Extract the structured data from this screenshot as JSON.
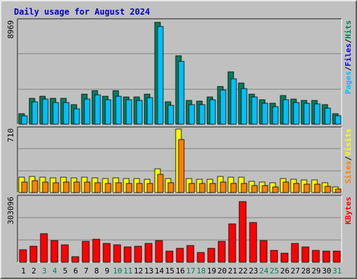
{
  "title": "Daily usage for August 2024",
  "colors": {
    "hits": "#00805c",
    "files": "#00c0ff",
    "sites": "#ff8000",
    "visits": "#ffff00",
    "kbytes": "#ff0000",
    "weekend_label": "#00805c",
    "weekday_label": "#000000",
    "title": "#0000cc"
  },
  "chart_data": [
    {
      "type": "bar",
      "panel": "top",
      "max_label": "8969",
      "ylim": [
        0,
        8969
      ],
      "grid": true,
      "legend": {
        "parts": [
          "Pages",
          "Files",
          "Hits"
        ],
        "colors": [
          "#00c0ff",
          "#0000ff",
          "#00805c"
        ],
        "placement": "right"
      },
      "categories": [
        "1",
        "2",
        "3",
        "4",
        "5",
        "6",
        "7",
        "8",
        "9",
        "10",
        "11",
        "12",
        "13",
        "14",
        "15",
        "16",
        "17",
        "18",
        "19",
        "20",
        "21",
        "22",
        "23",
        "24",
        "25",
        "26",
        "27",
        "28",
        "29",
        "30",
        "31"
      ],
      "series": [
        {
          "name": "Hits",
          "values": [
            900,
            2250,
            2450,
            2250,
            2250,
            1700,
            2600,
            2950,
            2450,
            2950,
            2400,
            2400,
            2650,
            8900,
            1950,
            5950,
            2100,
            2000,
            2400,
            3300,
            4550,
            3600,
            2650,
            2150,
            1800,
            2500,
            2200,
            2100,
            2100,
            1700,
            900
          ]
        },
        {
          "name": "Files",
          "values": [
            900,
            2150,
            2350,
            2050,
            2050,
            1550,
            2400,
            2750,
            2300,
            2650,
            2300,
            2250,
            2500,
            8700,
            1850,
            5700,
            1900,
            1900,
            2300,
            3150,
            4150,
            3300,
            2550,
            2000,
            1700,
            2300,
            2100,
            2000,
            1950,
            1600,
            900
          ]
        }
      ]
    },
    {
      "type": "bar",
      "panel": "middle",
      "max_label": "710",
      "ylim": [
        0,
        710
      ],
      "grid": true,
      "legend": {
        "parts": [
          "Sites",
          "Visits"
        ],
        "colors": [
          "#ff8000",
          "#ffff00"
        ],
        "placement": "right"
      },
      "categories": [
        "1",
        "2",
        "3",
        "4",
        "5",
        "6",
        "7",
        "8",
        "9",
        "10",
        "11",
        "12",
        "13",
        "14",
        "15",
        "16",
        "17",
        "18",
        "19",
        "20",
        "21",
        "22",
        "23",
        "24",
        "25",
        "26",
        "27",
        "28",
        "29",
        "30",
        "31"
      ],
      "series": [
        {
          "name": "Visits",
          "values": [
            170,
            180,
            170,
            165,
            170,
            165,
            170,
            165,
            160,
            165,
            160,
            155,
            150,
            270,
            155,
            720,
            155,
            150,
            150,
            180,
            175,
            170,
            125,
            120,
            110,
            160,
            150,
            140,
            140,
            110,
            60
          ]
        },
        {
          "name": "Sites",
          "values": [
            140,
            160,
            140,
            135,
            140,
            140,
            140,
            135,
            130,
            135,
            130,
            130,
            130,
            230,
            135,
            620,
            130,
            125,
            125,
            140,
            130,
            130,
            105,
            100,
            90,
            140,
            130,
            115,
            115,
            95,
            60
          ]
        }
      ]
    },
    {
      "type": "bar",
      "panel": "bottom",
      "max_label": "303096",
      "ylim": [
        0,
        303096
      ],
      "grid": true,
      "legend": {
        "parts": [
          "KBytes"
        ],
        "colors": [
          "#ff0000"
        ],
        "placement": "right"
      },
      "categories": [
        "1",
        "2",
        "3",
        "4",
        "5",
        "6",
        "7",
        "8",
        "9",
        "10",
        "11",
        "12",
        "13",
        "14",
        "15",
        "16",
        "17",
        "18",
        "19",
        "20",
        "21",
        "22",
        "23",
        "24",
        "25",
        "26",
        "27",
        "28",
        "29",
        "30",
        "31"
      ],
      "series": [
        {
          "name": "KBytes",
          "values": [
            58000,
            76000,
            135000,
            103000,
            82000,
            27000,
            98000,
            108000,
            88000,
            83000,
            72000,
            76000,
            90000,
            103000,
            53000,
            66000,
            80000,
            45000,
            65000,
            98000,
            182000,
            288000,
            188000,
            103000,
            57000,
            44000,
            89000,
            73000,
            57000,
            53000,
            53000
          ]
        }
      ]
    }
  ],
  "x_labels": [
    {
      "text": "1",
      "weekend": false
    },
    {
      "text": "2",
      "weekend": false
    },
    {
      "text": "3",
      "weekend": true
    },
    {
      "text": "4",
      "weekend": true
    },
    {
      "text": "5",
      "weekend": false
    },
    {
      "text": "6",
      "weekend": false
    },
    {
      "text": "7",
      "weekend": false
    },
    {
      "text": "8",
      "weekend": false
    },
    {
      "text": "9",
      "weekend": false
    },
    {
      "text": "10",
      "weekend": true
    },
    {
      "text": "11",
      "weekend": true
    },
    {
      "text": "12",
      "weekend": false
    },
    {
      "text": "13",
      "weekend": false
    },
    {
      "text": "14",
      "weekend": false
    },
    {
      "text": "15",
      "weekend": false
    },
    {
      "text": "16",
      "weekend": false
    },
    {
      "text": "17",
      "weekend": true
    },
    {
      "text": "18",
      "weekend": true
    },
    {
      "text": "19",
      "weekend": false
    },
    {
      "text": "20",
      "weekend": false
    },
    {
      "text": "21",
      "weekend": false
    },
    {
      "text": "22",
      "weekend": false
    },
    {
      "text": "23",
      "weekend": false
    },
    {
      "text": "24",
      "weekend": true
    },
    {
      "text": "25",
      "weekend": true
    },
    {
      "text": "26",
      "weekend": false
    },
    {
      "text": "27",
      "weekend": false
    },
    {
      "text": "28",
      "weekend": false
    },
    {
      "text": "29",
      "weekend": false
    },
    {
      "text": "30",
      "weekend": false
    },
    {
      "text": "31",
      "weekend": true
    }
  ]
}
